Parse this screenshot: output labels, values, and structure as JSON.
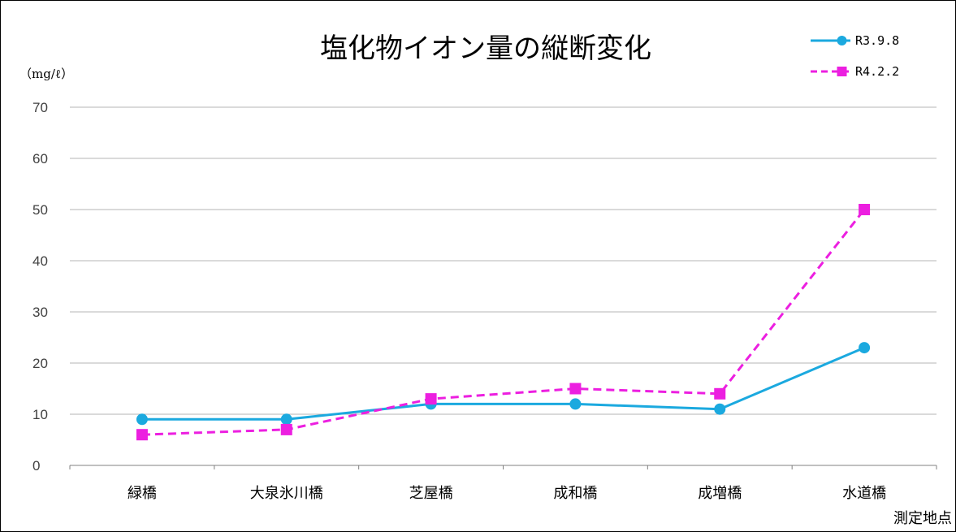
{
  "chart_data": {
    "type": "line",
    "title": "塩化物イオン量の縦断変化",
    "ylabel": "（mg/ℓ）",
    "xlabel": "測定地点",
    "ylim": [
      0,
      70
    ],
    "yticks": [
      "0",
      "10",
      "20",
      "30",
      "40",
      "50",
      "60",
      "70"
    ],
    "categories": [
      "緑橋",
      "大泉氷川橋",
      "芝屋橋",
      "成和橋",
      "成増橋",
      "水道橋"
    ],
    "grid": true,
    "legend_position": "top-right",
    "series": [
      {
        "name": "R3.9.8",
        "values": [
          9,
          9,
          12,
          12,
          11,
          23
        ],
        "color": "#1BA9DF",
        "marker": "circle",
        "dash": "solid"
      },
      {
        "name": "R4.2.2",
        "values": [
          6,
          7,
          13,
          15,
          14,
          50
        ],
        "color": "#EC1FE0",
        "marker": "square",
        "dash": "dashed"
      }
    ]
  }
}
